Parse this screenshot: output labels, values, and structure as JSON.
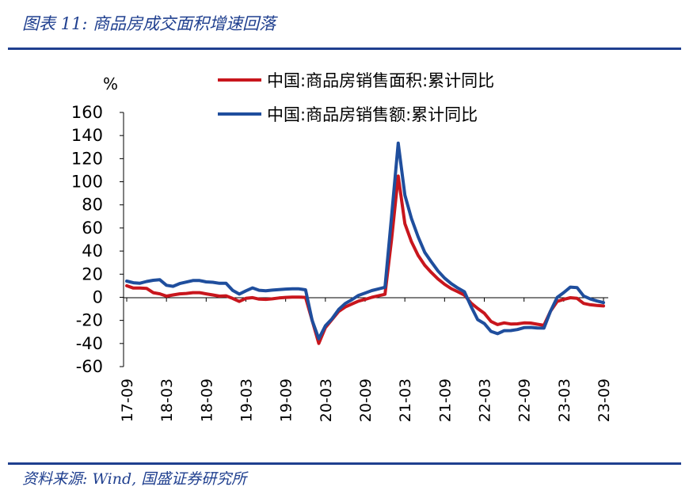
{
  "header": {
    "title": "图表 11:  商品房成交面积增速回落"
  },
  "footer": {
    "source": "资料来源:  Wind, 国盛证券研究所"
  },
  "chart_data": {
    "type": "line",
    "unit_label": "%",
    "ylim": [
      -60,
      160
    ],
    "yticks": [
      -60,
      -40,
      -20,
      0,
      20,
      40,
      60,
      80,
      100,
      120,
      140,
      160
    ],
    "xticks": [
      "17-09",
      "18-03",
      "18-09",
      "19-03",
      "19-09",
      "20-03",
      "20-09",
      "21-03",
      "21-09",
      "22-03",
      "22-09",
      "23-03",
      "23-09"
    ],
    "grid": false,
    "legend_position": "top-right",
    "series": [
      {
        "name": "中国:商品房销售面积:累计同比",
        "color": "#c8161d",
        "points": [
          [
            "17-09",
            10
          ],
          [
            "17-10",
            8
          ],
          [
            "17-11",
            8
          ],
          [
            "17-12",
            7.7
          ],
          [
            "18-01",
            4
          ],
          [
            "18-02",
            3
          ],
          [
            "18-03",
            1
          ],
          [
            "18-04",
            2
          ],
          [
            "18-05",
            3
          ],
          [
            "18-06",
            3.3
          ],
          [
            "18-07",
            4
          ],
          [
            "18-08",
            4
          ],
          [
            "18-09",
            3
          ],
          [
            "18-10",
            2
          ],
          [
            "18-11",
            1
          ],
          [
            "18-12",
            1.3
          ],
          [
            "19-01",
            -1
          ],
          [
            "19-02",
            -3.6
          ],
          [
            "19-03",
            -0.9
          ],
          [
            "19-04",
            -0.3
          ],
          [
            "19-05",
            -1.6
          ],
          [
            "19-06",
            -1.8
          ],
          [
            "19-07",
            -1.3
          ],
          [
            "19-08",
            -0.6
          ],
          [
            "19-09",
            -0.1
          ],
          [
            "19-10",
            0.1
          ],
          [
            "19-11",
            0.2
          ],
          [
            "19-12",
            -0.1
          ],
          [
            "20-01",
            -20
          ],
          [
            "20-02",
            -39.9
          ],
          [
            "20-03",
            -26.3
          ],
          [
            "20-04",
            -19.3
          ],
          [
            "20-05",
            -12.3
          ],
          [
            "20-06",
            -8.4
          ],
          [
            "20-07",
            -5.8
          ],
          [
            "20-08",
            -3.3
          ],
          [
            "20-09",
            -1.8
          ],
          [
            "20-10",
            0
          ],
          [
            "20-11",
            1.3
          ],
          [
            "20-12",
            2.6
          ],
          [
            "21-01",
            50
          ],
          [
            "21-02",
            104.9
          ],
          [
            "21-03",
            63.8
          ],
          [
            "21-04",
            48.1
          ],
          [
            "21-05",
            36.3
          ],
          [
            "21-06",
            27.7
          ],
          [
            "21-07",
            21.5
          ],
          [
            "21-08",
            15.9
          ],
          [
            "21-09",
            11.3
          ],
          [
            "21-10",
            7.5
          ],
          [
            "21-11",
            4.8
          ],
          [
            "21-12",
            1.9
          ],
          [
            "22-01",
            -5
          ],
          [
            "22-02",
            -9.6
          ],
          [
            "22-03",
            -13.8
          ],
          [
            "22-04",
            -20.9
          ],
          [
            "22-05",
            -23.6
          ],
          [
            "22-06",
            -22.2
          ],
          [
            "22-07",
            -23.1
          ],
          [
            "22-08",
            -23
          ],
          [
            "22-09",
            -22.2
          ],
          [
            "22-10",
            -22.3
          ],
          [
            "22-11",
            -23.3
          ],
          [
            "22-12",
            -24.3
          ],
          [
            "23-01",
            -12
          ],
          [
            "23-02",
            -3.6
          ],
          [
            "23-03",
            -1.8
          ],
          [
            "23-04",
            -0.4
          ],
          [
            "23-05",
            -0.9
          ],
          [
            "23-06",
            -5.3
          ],
          [
            "23-07",
            -6.5
          ],
          [
            "23-08",
            -7.1
          ],
          [
            "23-09",
            -7.5
          ]
        ]
      },
      {
        "name": "中国:商品房销售额:累计同比",
        "color": "#1f4e9d",
        "points": [
          [
            "17-09",
            14
          ],
          [
            "17-10",
            12.6
          ],
          [
            "17-11",
            12.2
          ],
          [
            "17-12",
            13.7
          ],
          [
            "18-01",
            14.7
          ],
          [
            "18-02",
            15.2
          ],
          [
            "18-03",
            10.4
          ],
          [
            "18-04",
            9.5
          ],
          [
            "18-05",
            11.9
          ],
          [
            "18-06",
            13.2
          ],
          [
            "18-07",
            14.5
          ],
          [
            "18-08",
            14.5
          ],
          [
            "18-09",
            13.3
          ],
          [
            "18-10",
            13
          ],
          [
            "18-11",
            12.1
          ],
          [
            "18-12",
            12.2
          ],
          [
            "19-01",
            6
          ],
          [
            "19-02",
            2.8
          ],
          [
            "19-03",
            5.6
          ],
          [
            "19-04",
            8.1
          ],
          [
            "19-05",
            6.1
          ],
          [
            "19-06",
            5.6
          ],
          [
            "19-07",
            6.2
          ],
          [
            "19-08",
            6.7
          ],
          [
            "19-09",
            7.1
          ],
          [
            "19-10",
            7.3
          ],
          [
            "19-11",
            7.3
          ],
          [
            "19-12",
            6.5
          ],
          [
            "20-01",
            -20
          ],
          [
            "20-02",
            -35.9
          ],
          [
            "20-03",
            -24.7
          ],
          [
            "20-04",
            -18.6
          ],
          [
            "20-05",
            -10.6
          ],
          [
            "20-06",
            -5.4
          ],
          [
            "20-07",
            -2.1
          ],
          [
            "20-08",
            1.6
          ],
          [
            "20-09",
            3.7
          ],
          [
            "20-10",
            5.8
          ],
          [
            "20-11",
            7.2
          ],
          [
            "20-12",
            8.7
          ],
          [
            "21-01",
            70
          ],
          [
            "21-02",
            133.4
          ],
          [
            "21-03",
            88.5
          ],
          [
            "21-04",
            68.2
          ],
          [
            "21-05",
            52.4
          ],
          [
            "21-06",
            38.9
          ],
          [
            "21-07",
            30.7
          ],
          [
            "21-08",
            22.8
          ],
          [
            "21-09",
            16.6
          ],
          [
            "21-10",
            11.8
          ],
          [
            "21-11",
            8
          ],
          [
            "21-12",
            4.8
          ],
          [
            "22-01",
            -8
          ],
          [
            "22-02",
            -19.3
          ],
          [
            "22-03",
            -22.7
          ],
          [
            "22-04",
            -29.5
          ],
          [
            "22-05",
            -31.5
          ],
          [
            "22-06",
            -28.9
          ],
          [
            "22-07",
            -28.8
          ],
          [
            "22-08",
            -27.9
          ],
          [
            "22-09",
            -26.3
          ],
          [
            "22-10",
            -26.1
          ],
          [
            "22-11",
            -26.6
          ],
          [
            "22-12",
            -26.7
          ],
          [
            "23-01",
            -12
          ],
          [
            "23-02",
            -0.1
          ],
          [
            "23-03",
            4.1
          ],
          [
            "23-04",
            8.8
          ],
          [
            "23-05",
            8.4
          ],
          [
            "23-06",
            1.1
          ],
          [
            "23-07",
            -1.5
          ],
          [
            "23-08",
            -3.2
          ],
          [
            "23-09",
            -4.6
          ]
        ]
      }
    ]
  }
}
